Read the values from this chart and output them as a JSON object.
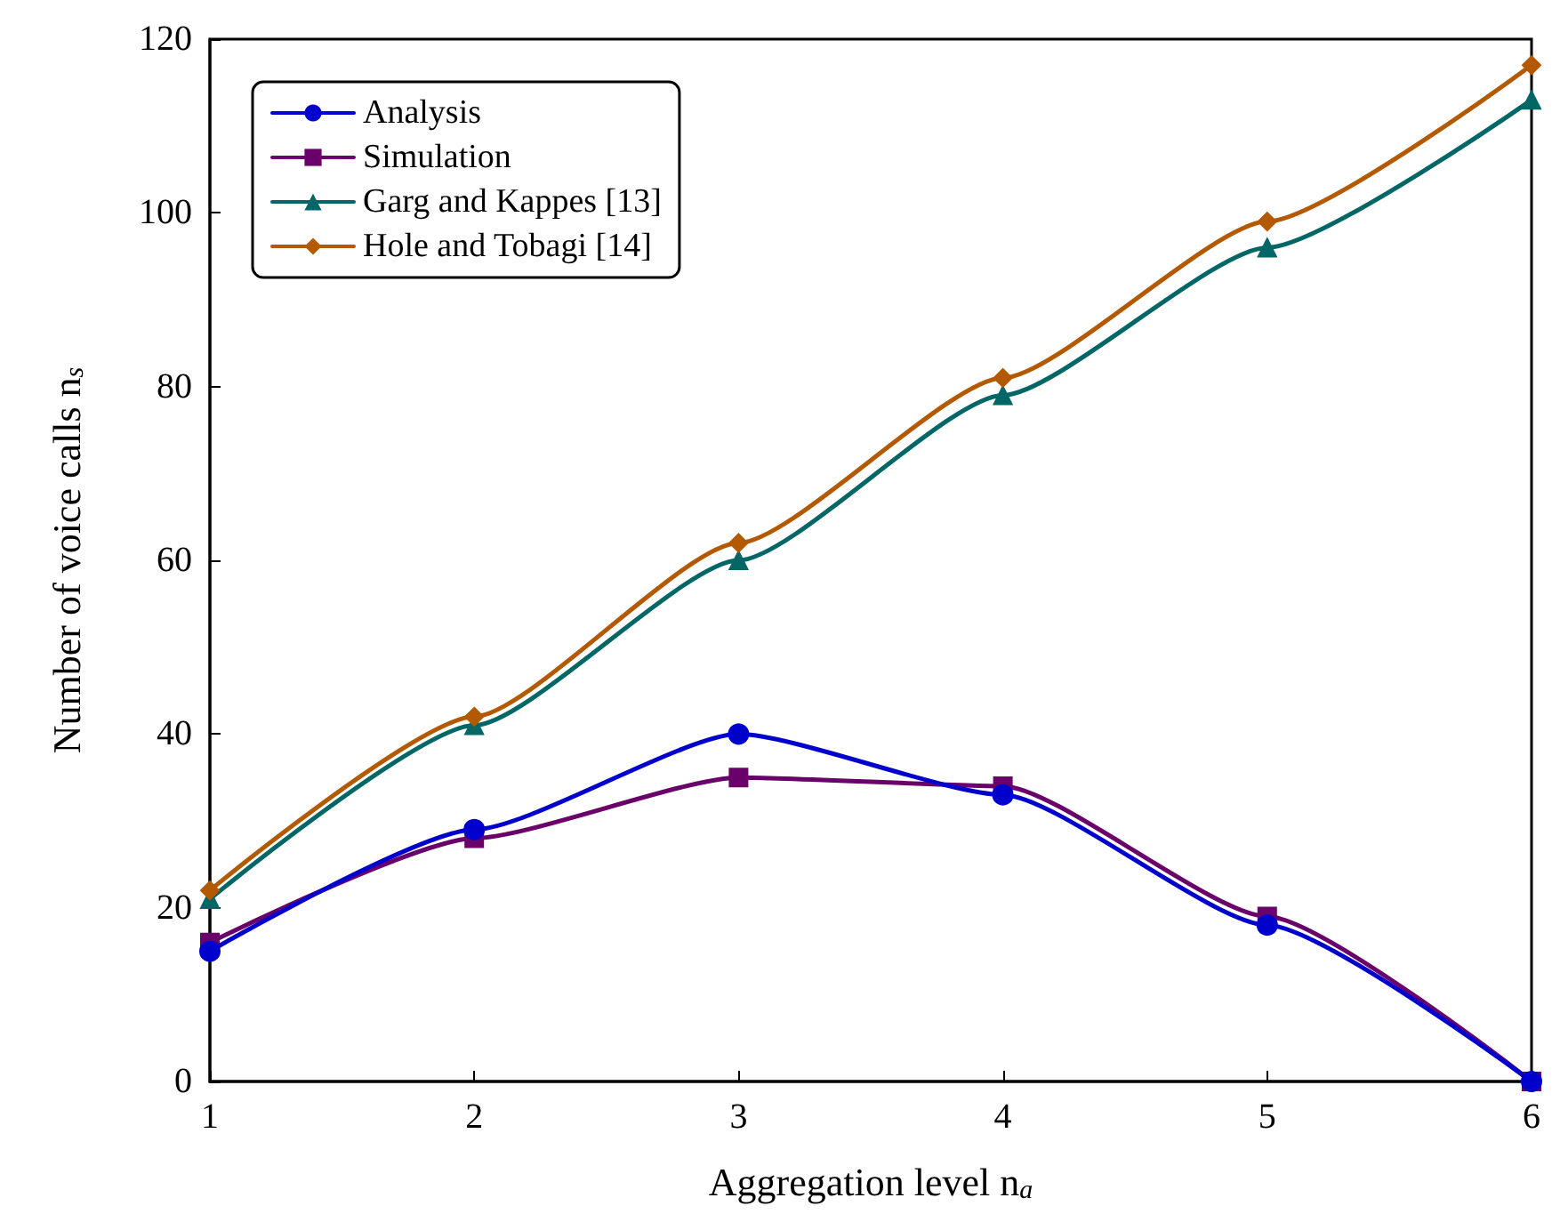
{
  "chart_data": {
    "type": "line",
    "xlabel": "Aggregation level n$_{a}$",
    "ylabel": "Number of voice calls n$_{s}$",
    "x": [
      1,
      2,
      3,
      4,
      5,
      6
    ],
    "xlim": [
      1,
      6
    ],
    "xticks": [
      1,
      2,
      3,
      4,
      5,
      6
    ],
    "ylim": [
      0,
      120
    ],
    "yticks": [
      0,
      20,
      40,
      60,
      80,
      100,
      120
    ],
    "grid": false,
    "legend": "top left",
    "line_style": "solid",
    "series": [
      {
        "name": "Analysis",
        "color": "#0000cc",
        "marker": "circle",
        "values": [
          15,
          29,
          40,
          33,
          18,
          0
        ]
      },
      {
        "name": "Simulation",
        "color": "#6a006a",
        "marker": "square",
        "values": [
          16,
          28,
          35,
          34,
          19,
          0
        ]
      },
      {
        "name": "Garg and Kappes [13]",
        "color": "#006666",
        "marker": "triangle",
        "values": [
          21,
          41,
          60,
          79,
          96,
          113
        ]
      },
      {
        "name": "Hole and Tobagi [14]",
        "color": "#b35900",
        "marker": "diamond",
        "values": [
          22,
          42,
          62,
          81,
          99,
          117
        ]
      }
    ]
  }
}
